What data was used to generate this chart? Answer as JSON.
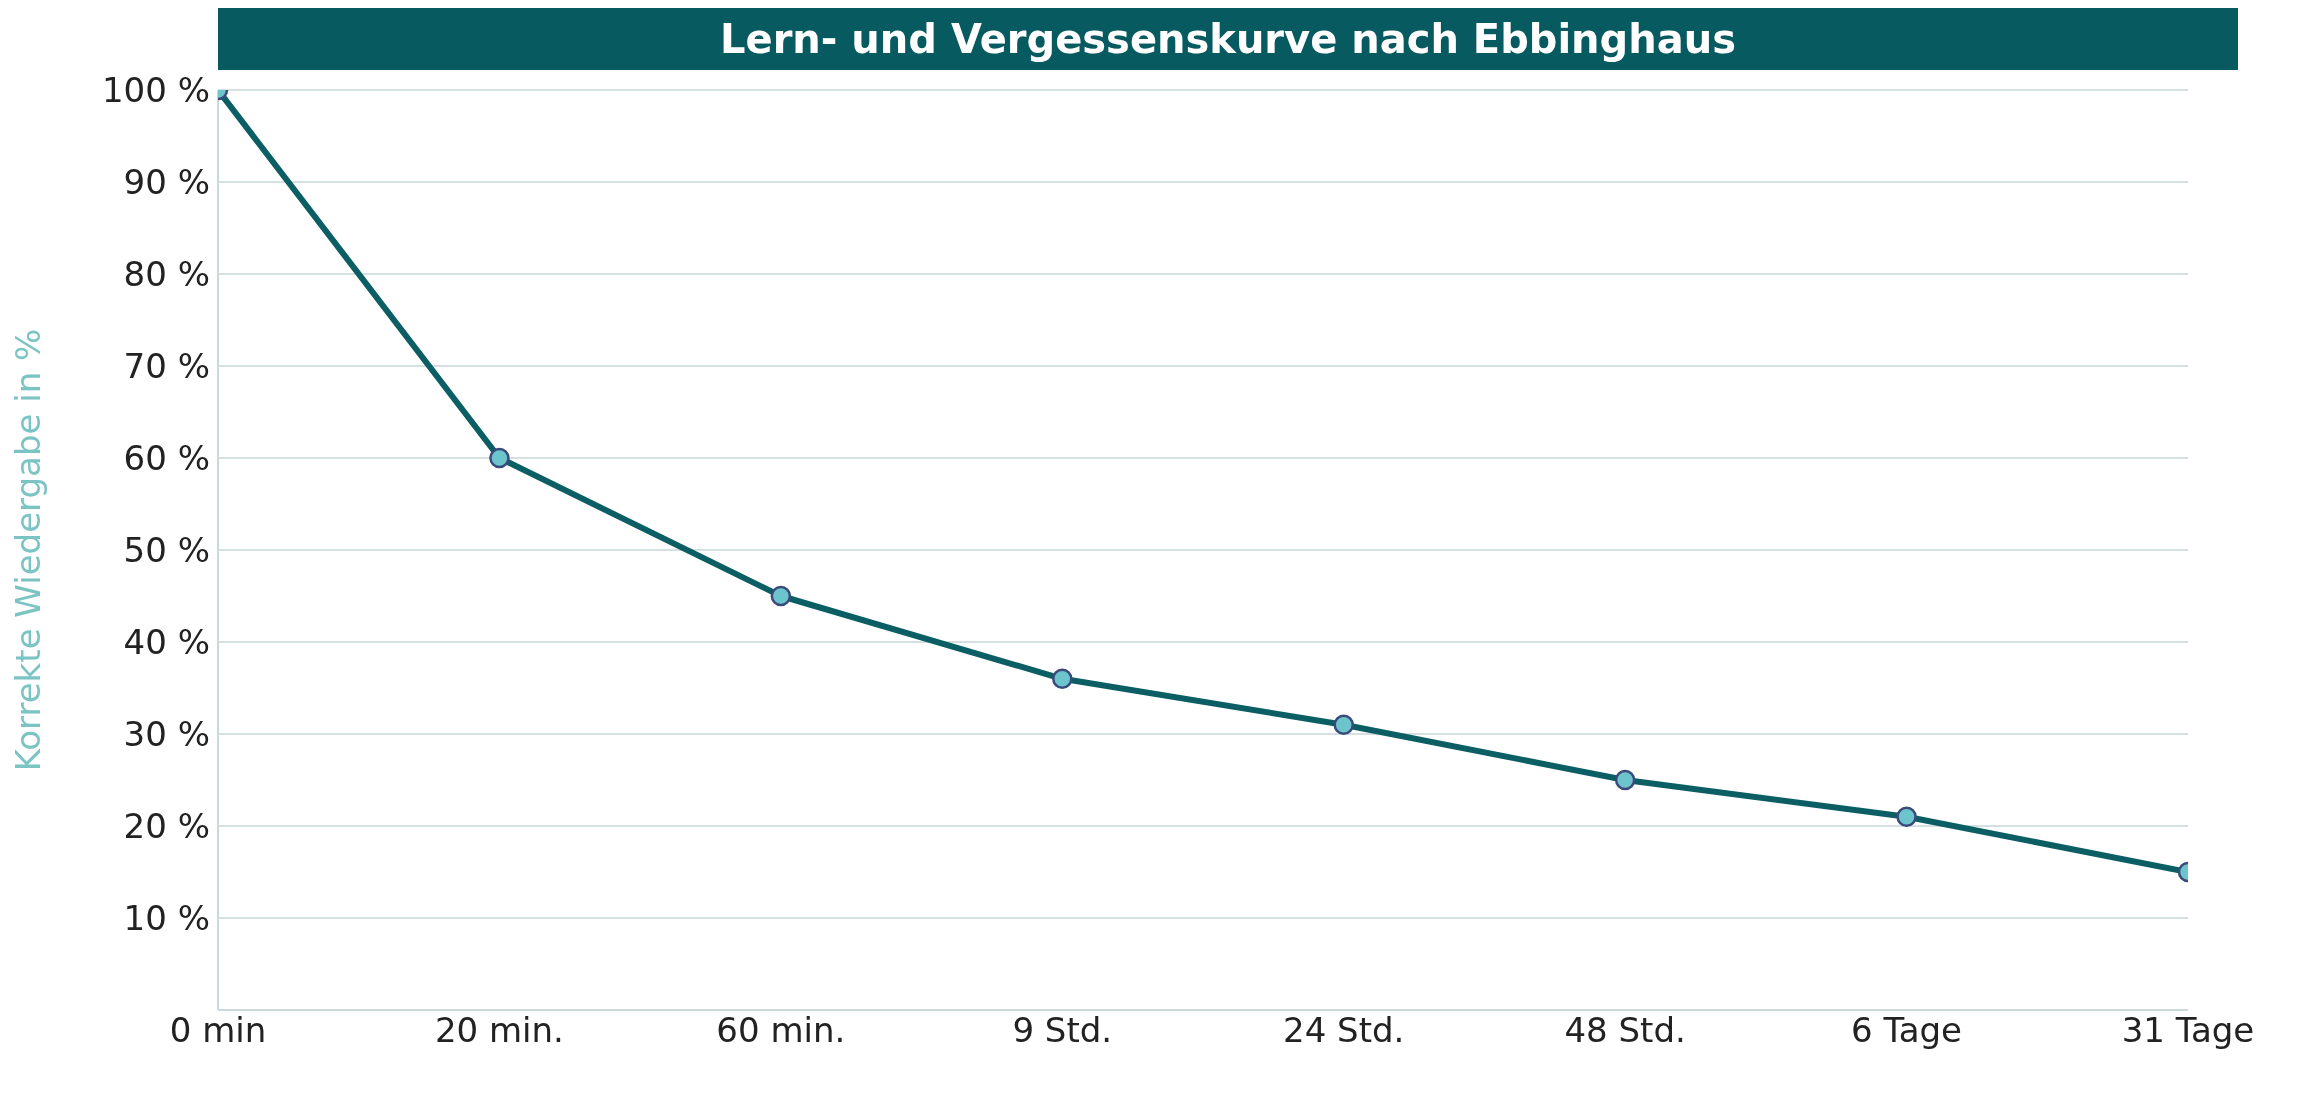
{
  "chart_data": {
    "type": "line",
    "title": "Lern- und Vergessenskurve nach Ebbinghaus",
    "ylabel": "Korrekte Wiedergabe in %",
    "categories": [
      "0 min",
      "20 min.",
      "60 min.",
      "9 Std.",
      "24 Std.",
      "48 Std.",
      "6 Tage",
      "31 Tage"
    ],
    "series": [
      {
        "color": "#0b5e63",
        "values": [
          100,
          60,
          45,
          36,
          31,
          25,
          21,
          15
        ]
      }
    ],
    "ylim": [
      0,
      100
    ],
    "yticks": [
      {
        "value": 10,
        "label": "10 %"
      },
      {
        "value": 20,
        "label": "20 %"
      },
      {
        "value": 30,
        "label": "30 %"
      },
      {
        "value": 40,
        "label": "40 %"
      },
      {
        "value": 50,
        "label": "50 %"
      },
      {
        "value": 60,
        "label": "60 %"
      },
      {
        "value": 70,
        "label": "70 %"
      },
      {
        "value": 80,
        "label": "80 %"
      },
      {
        "value": 90,
        "label": "90 %"
      },
      {
        "value": 100,
        "label": "100 %"
      }
    ],
    "grid": "y",
    "marker": "circle",
    "line_style": "solid"
  }
}
